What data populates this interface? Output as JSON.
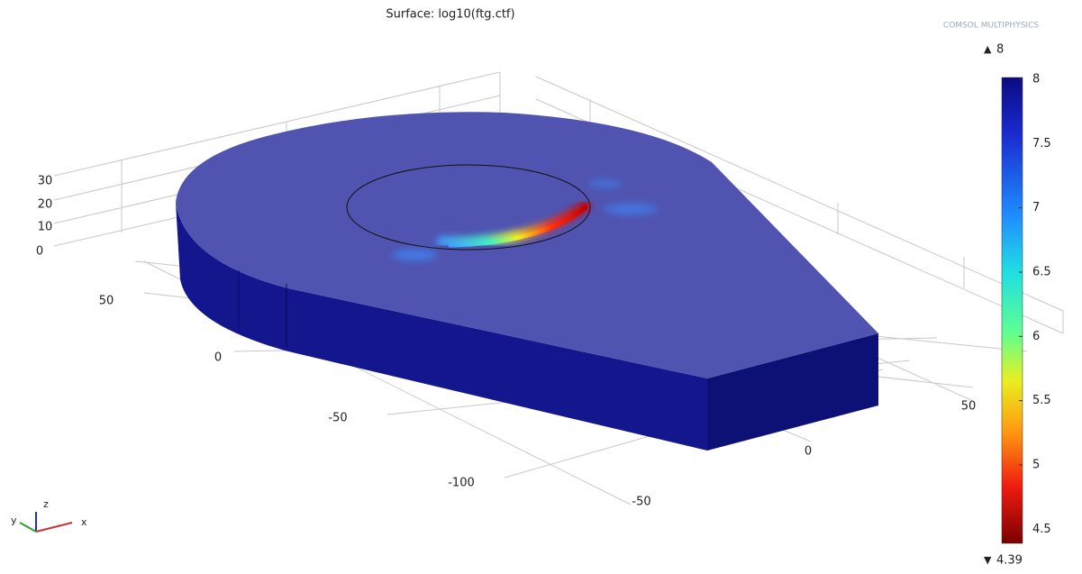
{
  "title": "Surface: log10(ftg.ctf)",
  "logo": "COMSOL MULTIPHYSICS",
  "colorbar": {
    "max": 8,
    "min": 4.39,
    "ticks": [
      8,
      7.5,
      7,
      6.5,
      6,
      5.5,
      5,
      4.5
    ]
  },
  "axes": {
    "z_ticks": [
      "30",
      "20",
      "10",
      "0"
    ],
    "y_ticks": [
      "50",
      "0",
      "-50",
      "-100"
    ],
    "x_ticks": [
      "-50",
      "0",
      "50"
    ]
  },
  "triad": {
    "x": "x",
    "y": "y",
    "z": "z"
  }
}
